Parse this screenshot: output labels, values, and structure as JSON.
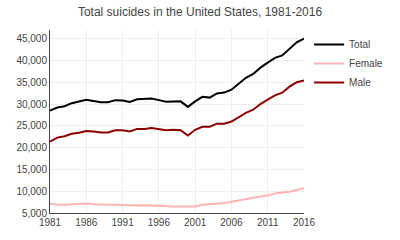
{
  "chart_data": {
    "type": "line",
    "title": "Total suicides in the United States, 1981-2016",
    "x": [
      1981,
      1982,
      1983,
      1984,
      1985,
      1986,
      1987,
      1988,
      1989,
      1990,
      1991,
      1992,
      1993,
      1994,
      1995,
      1996,
      1997,
      1998,
      1999,
      2000,
      2001,
      2002,
      2003,
      2004,
      2005,
      2006,
      2007,
      2008,
      2009,
      2010,
      2011,
      2012,
      2013,
      2014,
      2015,
      2016
    ],
    "series": [
      {
        "name": "Total",
        "color": "#000000",
        "values": [
          28500,
          29200,
          29500,
          30200,
          30600,
          31000,
          30700,
          30400,
          30400,
          30900,
          30810,
          30484,
          31102,
          31142,
          31284,
          30903,
          30535,
          30575,
          30622,
          29350,
          30622,
          31655,
          31484,
          32439,
          32637,
          33300,
          34598,
          36035,
          36909,
          38364,
          39518,
          40600,
          41149,
          42773,
          44193,
          45000
        ]
      },
      {
        "name": "Female",
        "color": "#ffb3b3",
        "values": [
          7100,
          6900,
          6900,
          7000,
          7200,
          7200,
          7000,
          6900,
          6900,
          6900,
          6900,
          6800,
          6700,
          6800,
          6700,
          6600,
          6500,
          6500,
          6500,
          6500,
          6500,
          6900,
          7000,
          7100,
          7300,
          7600,
          7900,
          8200,
          8600,
          8800,
          9000,
          9500,
          9700,
          9900,
          10300,
          10700
        ]
      },
      {
        "name": "Male",
        "color": "#8b0000",
        "values": [
          21400,
          22300,
          22600,
          23200,
          23400,
          23800,
          23700,
          23500,
          23500,
          24000,
          24000,
          23700,
          24300,
          24300,
          24500,
          24200,
          24000,
          24100,
          24000,
          22800,
          24100,
          24800,
          24800,
          25500,
          25500,
          26000,
          27000,
          28000,
          28700,
          30000,
          31000,
          32000,
          32600,
          34000,
          35000,
          35400
        ]
      }
    ],
    "xlim": [
      1981,
      2016
    ],
    "xticks": [
      1981,
      1986,
      1991,
      1996,
      2001,
      2006,
      2011,
      2016
    ],
    "ylim": [
      5000,
      47000
    ],
    "yticks": [
      {
        "value": 5000,
        "label": "5,000"
      },
      {
        "value": 10000,
        "label": "10,000"
      },
      {
        "value": 15000,
        "label": "15,000"
      },
      {
        "value": 20000,
        "label": "20,000"
      },
      {
        "value": 25000,
        "label": "25,000"
      },
      {
        "value": 30000,
        "label": "30,000"
      },
      {
        "value": 35000,
        "label": "35,000"
      },
      {
        "value": 40000,
        "label": "40,000"
      },
      {
        "value": 45000,
        "label": "45,000"
      }
    ],
    "grid": true,
    "legend": "right"
  }
}
